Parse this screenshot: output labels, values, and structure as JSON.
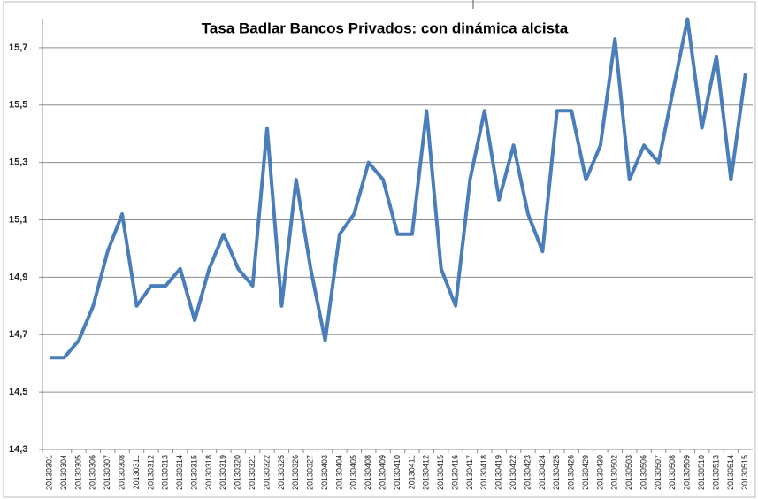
{
  "chart_data": {
    "type": "line",
    "title": "Tasa Badlar Bancos Privados: con dinámica alcista",
    "categories": [
      "20130301",
      "20130304",
      "20130305",
      "20130306",
      "20130307",
      "20130308",
      "20130311",
      "20130312",
      "20130313",
      "20130314",
      "20130315",
      "20130318",
      "20130319",
      "20130320",
      "20130321",
      "20130322",
      "20130325",
      "20130326",
      "20130327",
      "20130403",
      "20130404",
      "20130405",
      "20130408",
      "20130409",
      "20130410",
      "20130411",
      "20130412",
      "20130415",
      "20130416",
      "20130417",
      "20130418",
      "20130419",
      "20130422",
      "20130423",
      "20130424",
      "20130425",
      "20130426",
      "20130429",
      "20130430",
      "20130502",
      "20130503",
      "20130506",
      "20130507",
      "20130508",
      "20130509",
      "20130510",
      "20130513",
      "20130514",
      "20130515"
    ],
    "series": [
      {
        "name": "Tasa Badlar Bancos Privados",
        "color": "#4a7ebb",
        "values": [
          14.62,
          14.62,
          14.68,
          14.8,
          14.99,
          15.12,
          14.8,
          14.87,
          14.87,
          14.93,
          14.75,
          14.93,
          15.05,
          14.93,
          14.87,
          15.42,
          14.8,
          15.24,
          14.93,
          14.68,
          15.05,
          15.12,
          15.3,
          15.24,
          15.05,
          15.05,
          15.48,
          14.93,
          14.8,
          15.24,
          15.48,
          15.17,
          15.36,
          15.12,
          14.99,
          15.48,
          15.48,
          15.24,
          15.36,
          15.73,
          15.24,
          15.36,
          15.3,
          15.55,
          15.8,
          15.42,
          15.67,
          15.24,
          15.61
        ]
      }
    ],
    "ylim": [
      14.3,
      15.8
    ],
    "yticks": [
      {
        "value": 14.3,
        "label": "14,3"
      },
      {
        "value": 14.5,
        "label": "14,5"
      },
      {
        "value": 14.7,
        "label": "14,7"
      },
      {
        "value": 14.9,
        "label": "14,9"
      },
      {
        "value": 15.1,
        "label": "15,1"
      },
      {
        "value": 15.3,
        "label": "15,3"
      },
      {
        "value": 15.5,
        "label": "15,5"
      },
      {
        "value": 15.7,
        "label": "15,7"
      }
    ],
    "grid": true
  }
}
